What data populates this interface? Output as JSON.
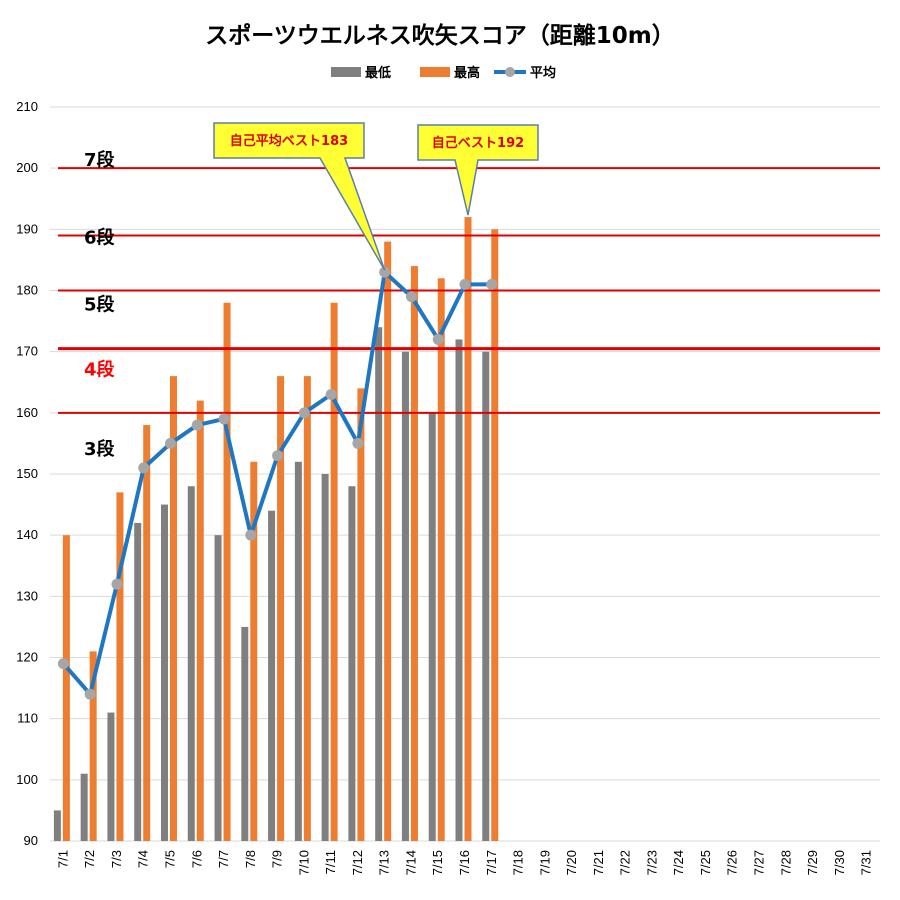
{
  "chart_data": {
    "type": "bar",
    "title": "スポーツウエルネス吹矢スコア（距離10m）",
    "xlabel": "",
    "ylabel": "",
    "ylim": [
      90,
      210
    ],
    "yticks": [
      90,
      100,
      110,
      120,
      130,
      140,
      150,
      160,
      170,
      180,
      190,
      200,
      210
    ],
    "grid": true,
    "legend_position": "top",
    "categories": [
      "7/1",
      "7/2",
      "7/3",
      "7/4",
      "7/5",
      "7/6",
      "7/7",
      "7/8",
      "7/9",
      "7/10",
      "7/11",
      "7/12",
      "7/13",
      "7/14",
      "7/15",
      "7/16",
      "7/17",
      "7/18",
      "7/19",
      "7/20",
      "7/21",
      "7/22",
      "7/23",
      "7/24",
      "7/25",
      "7/26",
      "7/27",
      "7/28",
      "7/29",
      "7/30",
      "7/31"
    ],
    "series": [
      {
        "name": "最低",
        "kind": "bar",
        "color": "#7f7f7f",
        "values": [
          95,
          101,
          111,
          142,
          145,
          148,
          140,
          125,
          144,
          152,
          150,
          148,
          174,
          170,
          160,
          172,
          170,
          null,
          null,
          null,
          null,
          null,
          null,
          null,
          null,
          null,
          null,
          null,
          null,
          null,
          null
        ]
      },
      {
        "name": "最高",
        "kind": "bar",
        "color": "#ed7d31",
        "values": [
          140,
          121,
          147,
          158,
          166,
          162,
          178,
          152,
          166,
          166,
          178,
          164,
          188,
          184,
          182,
          192,
          190,
          null,
          null,
          null,
          null,
          null,
          null,
          null,
          null,
          null,
          null,
          null,
          null,
          null,
          null
        ]
      },
      {
        "name": "平均",
        "kind": "line",
        "color": "#1f77c4",
        "marker_color": "#a6a6a6",
        "values": [
          119,
          114,
          132,
          151,
          155,
          158,
          159,
          140,
          153,
          160,
          163,
          155,
          183,
          179,
          172,
          181,
          181,
          null,
          null,
          null,
          null,
          null,
          null,
          null,
          null,
          null,
          null,
          null,
          null,
          null,
          null
        ]
      }
    ],
    "reference_lines": [
      {
        "label": "7段",
        "value": 200,
        "label_color": "#000000"
      },
      {
        "label": "6段",
        "value": 189,
        "label_color": "#000000"
      },
      {
        "label": "5段",
        "value": 180,
        "label_color": "#000000"
      },
      {
        "label": "4段",
        "value": 170.5,
        "label_color": "#ff0000"
      },
      {
        "label": "3段",
        "value": 160,
        "label_color": "#000000"
      }
    ],
    "annotations": [
      {
        "text": "自己平均ベスト183",
        "category": "7/13",
        "value": 183
      },
      {
        "text": "自己ベスト192",
        "category": "7/16",
        "value": 192
      }
    ]
  }
}
